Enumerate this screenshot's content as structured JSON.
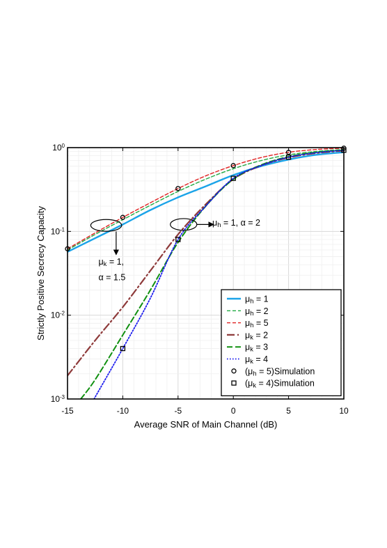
{
  "chart_data": {
    "type": "line",
    "xlabel": "Average SNR of Main Channel (dB)",
    "ylabel": "Strictly Positive Secrecy Capacity",
    "xlim": [
      -15,
      10
    ],
    "ylim": [
      0.001,
      1
    ],
    "yscale": "log",
    "grid": true,
    "x_ticks": [
      -15,
      -10,
      -5,
      0,
      5,
      10
    ],
    "x_tick_labels": [
      "-15",
      "-10",
      "-5",
      "0",
      "5",
      "10"
    ],
    "y_ticks": [
      0.001,
      0.01,
      0.1,
      1
    ],
    "y_tick_labels": [
      {
        "base": "10",
        "exp": "-3"
      },
      {
        "base": "10",
        "exp": "-2"
      },
      {
        "base": "10",
        "exp": "-1"
      },
      {
        "base": "10",
        "exp": "0"
      }
    ],
    "legend_position": "lower-right",
    "series": [
      {
        "name": "μh = 1",
        "sym": "μ",
        "sub": "h",
        "rest": " = 1",
        "color": "#1aa3e8",
        "style": "solid",
        "width": 2.4,
        "x": [
          -15,
          -12.5,
          -10,
          -7.5,
          -5,
          -2.5,
          0,
          2.5,
          5,
          7.5,
          10
        ],
        "y": [
          0.057,
          0.083,
          0.121,
          0.18,
          0.255,
          0.345,
          0.47,
          0.6,
          0.72,
          0.82,
          0.88
        ]
      },
      {
        "name": "μh = 2",
        "sym": "μ",
        "sub": "h",
        "rest": " = 2",
        "color": "#22aa44",
        "style": "dash",
        "width": 1.4,
        "x": [
          -15,
          -12.5,
          -10,
          -7.5,
          -5,
          -2.5,
          0,
          2.5,
          5,
          7.5,
          10
        ],
        "y": [
          0.06,
          0.092,
          0.138,
          0.205,
          0.3,
          0.42,
          0.56,
          0.7,
          0.82,
          0.9,
          0.95
        ]
      },
      {
        "name": "μh = 5",
        "sym": "μ",
        "sub": "h",
        "rest": " = 5",
        "color": "#e02020",
        "style": "dash",
        "width": 1.4,
        "x": [
          -15,
          -12.5,
          -10,
          -7.5,
          -5,
          -2.5,
          0,
          2.5,
          5,
          7.5,
          10
        ],
        "y": [
          0.062,
          0.096,
          0.147,
          0.22,
          0.325,
          0.46,
          0.61,
          0.76,
          0.88,
          0.95,
          0.985
        ]
      },
      {
        "name": "μk = 2",
        "sym": "μ",
        "sub": "k",
        "rest": " = 2",
        "color": "#8e3a3a",
        "style": "dashdot",
        "width": 2.2,
        "x": [
          -15,
          -12.5,
          -10,
          -7.5,
          -5,
          -2.5,
          0,
          2.5,
          5,
          7.5,
          10
        ],
        "y": [
          0.0019,
          0.005,
          0.0125,
          0.034,
          0.092,
          0.21,
          0.42,
          0.61,
          0.76,
          0.86,
          0.92
        ]
      },
      {
        "name": "μk = 3",
        "sym": "μ",
        "sub": "k",
        "rest": " = 3",
        "color": "#109010",
        "style": "dash2",
        "width": 2.0,
        "x": [
          -13.8,
          -12.5,
          -10,
          -7.5,
          -5,
          -2.5,
          0,
          2.5,
          5,
          7.5,
          10
        ],
        "y": [
          0.001,
          0.0017,
          0.0058,
          0.02,
          0.074,
          0.2,
          0.42,
          0.62,
          0.78,
          0.88,
          0.935
        ]
      },
      {
        "name": "μk = 4",
        "sym": "μ",
        "sub": "k",
        "rest": " = 4",
        "color": "#1a1aee",
        "style": "dot",
        "width": 1.8,
        "x": [
          -12.6,
          -10,
          -7.5,
          -5,
          -2.5,
          0,
          2.5,
          5,
          7.5,
          10
        ],
        "y": [
          0.001,
          0.004,
          0.016,
          0.08,
          0.2,
          0.43,
          0.61,
          0.77,
          0.87,
          0.93
        ]
      }
    ],
    "markers": [
      {
        "name": "(μh = 5)Simulation",
        "prefix": "(",
        "sym": "μ",
        "sub": "h",
        "rest": " = 5)Simulation",
        "shape": "circle",
        "x": [
          -15,
          -10,
          -5,
          0,
          5,
          10
        ],
        "y": [
          0.062,
          0.147,
          0.325,
          0.61,
          0.88,
          0.985
        ]
      },
      {
        "name": "(μk = 4)Simulation",
        "prefix": "(",
        "sym": "μ",
        "sub": "k",
        "rest": " = 4)Simulation",
        "shape": "square",
        "x": [
          -10,
          -5,
          0,
          5,
          10
        ],
        "y": [
          0.004,
          0.08,
          0.43,
          0.77,
          0.93
        ]
      }
    ],
    "annotations": [
      {
        "id": "annot-left",
        "ellipse": {
          "cx": -11.5,
          "cy": 0.118,
          "rx_db": 1.4,
          "ry_dec": 0.07
        },
        "arrow": {
          "x1": -10.6,
          "y1": 0.1,
          "x2": -10.6,
          "y2": 0.053
        },
        "lines": [
          {
            "sym": "μ",
            "sub": "k",
            "rest": " = 1,",
            "x": -12.2,
            "y": 0.04
          },
          {
            "text": "α = 1.5",
            "x": -12.2,
            "y": 0.026
          }
        ]
      },
      {
        "id": "annot-right",
        "ellipse": {
          "cx": -4.5,
          "cy": 0.121,
          "rx_db": 1.2,
          "ry_dec": 0.07
        },
        "arrow": {
          "x1": -3.3,
          "y1": 0.121,
          "x2": -1.8,
          "y2": 0.121
        },
        "lines": [
          {
            "sym": "μ",
            "sub": "h",
            "rest": " = 1, α = 2",
            "x": -1.9,
            "y": 0.117
          }
        ]
      }
    ]
  }
}
